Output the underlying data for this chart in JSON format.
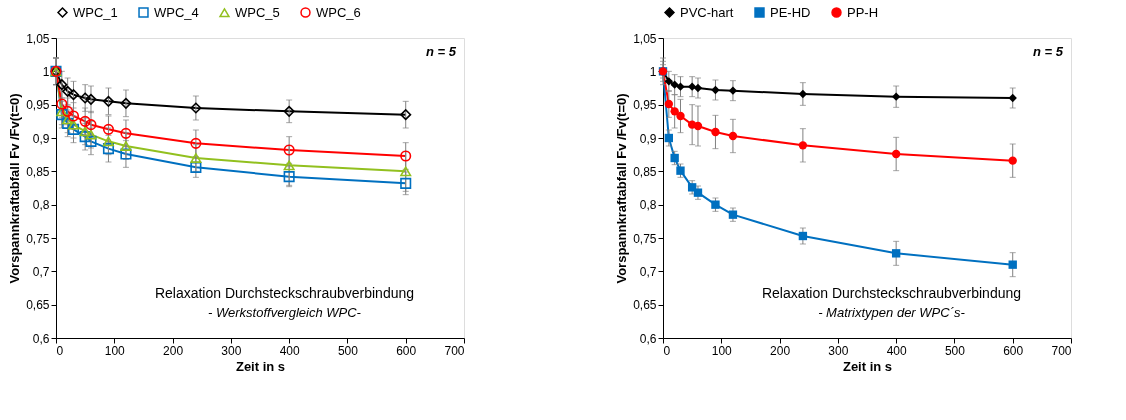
{
  "chart_data": [
    {
      "type": "line",
      "xlabel": "Zeit in s",
      "ylabel": "Vorspannkraftabfall Fv /Fv(t=0)",
      "legend": "top left",
      "grid": false,
      "line_style": "solid",
      "x": [
        0,
        10,
        20,
        30,
        50,
        60,
        90,
        120,
        240,
        400,
        600
      ],
      "xlim": [
        0,
        700
      ],
      "xticks": [
        0,
        100,
        200,
        300,
        400,
        500,
        600,
        700
      ],
      "ylim": [
        0.6,
        1.05
      ],
      "yticks": [
        {
          "value": 0.6,
          "label": "0,6"
        },
        {
          "value": 0.65,
          "label": "0,65"
        },
        {
          "value": 0.7,
          "label": "0,7"
        },
        {
          "value": 0.75,
          "label": "0,75"
        },
        {
          "value": 0.8,
          "label": "0,8"
        },
        {
          "value": 0.85,
          "label": "0,85"
        },
        {
          "value": 0.9,
          "label": "0,9"
        },
        {
          "value": 0.95,
          "label": "0,95"
        },
        {
          "value": 1,
          "label": "1"
        },
        {
          "value": 1.05,
          "label": "1,05"
        }
      ],
      "annotations": [
        "n = 5",
        "Relaxation  Durchsteckschraubverbindung",
        "- Werkstoffvergleich  WPC-"
      ],
      "series": [
        {
          "name": "WPC_1",
          "color": "#000000",
          "marker": "diamond",
          "values": [
            1,
            0.98,
            0.97,
            0.965,
            0.96,
            0.958,
            0.955,
            0.952,
            0.945,
            0.94,
            0.935
          ],
          "errors": [
            0.02,
            0.02,
            0.02,
            0.02,
            0.02,
            0.02,
            0.02,
            0.02,
            0.018,
            0.017,
            0.02
          ]
        },
        {
          "name": "WPC_4",
          "color": "#0070c0",
          "marker": "square",
          "values": [
            1,
            0.935,
            0.922,
            0.913,
            0.902,
            0.895,
            0.884,
            0.876,
            0.856,
            0.842,
            0.832
          ],
          "errors": [
            0.02,
            0.02,
            0.02,
            0.02,
            0.02,
            0.02,
            0.02,
            0.02,
            0.015,
            0.015,
            0.017
          ]
        },
        {
          "name": "WPC_5",
          "color": "#92c01f",
          "marker": "triangle",
          "values": [
            1,
            0.94,
            0.928,
            0.92,
            0.91,
            0.905,
            0.895,
            0.888,
            0.87,
            0.859,
            0.85
          ],
          "errors": [
            0.02,
            0.02,
            0.02,
            0.02,
            0.02,
            0.02,
            0.02,
            0.02,
            0.02,
            0.03,
            0.03
          ]
        },
        {
          "name": "WPC_6",
          "color": "#ff0000",
          "marker": "circle",
          "values": [
            1,
            0.951,
            0.94,
            0.933,
            0.925,
            0.92,
            0.913,
            0.907,
            0.892,
            0.882,
            0.873
          ],
          "errors": [
            0.02,
            0.02,
            0.02,
            0.02,
            0.02,
            0.02,
            0.02,
            0.02,
            0.02,
            0.02,
            0.02
          ]
        }
      ]
    },
    {
      "type": "line",
      "xlabel": "Zeit in s",
      "ylabel": "Vorspannkraftabfall Fv /Fv(t=0)",
      "legend": "top",
      "grid": false,
      "line_style": "solid",
      "x": [
        0,
        10,
        20,
        30,
        50,
        60,
        90,
        120,
        240,
        400,
        600
      ],
      "xlim": [
        0,
        700
      ],
      "xticks": [
        0,
        100,
        200,
        300,
        400,
        500,
        600,
        700
      ],
      "ylim": [
        0.6,
        1.05
      ],
      "yticks": [
        {
          "value": 0.6,
          "label": "0,6"
        },
        {
          "value": 0.65,
          "label": "0,65"
        },
        {
          "value": 0.7,
          "label": "0,7"
        },
        {
          "value": 0.75,
          "label": "0,75"
        },
        {
          "value": 0.8,
          "label": "0,8"
        },
        {
          "value": 0.85,
          "label": "0,85"
        },
        {
          "value": 0.9,
          "label": "0,9"
        },
        {
          "value": 0.95,
          "label": "0,95"
        },
        {
          "value": 1,
          "label": "1"
        },
        {
          "value": 1.05,
          "label": "1,05"
        }
      ],
      "annotations": [
        "n = 5",
        "Relaxation  Durchsteckschraubverbindung",
        "- Matrixtypen der WPC´s-"
      ],
      "series": [
        {
          "name": "PVC-hart",
          "color": "#000000",
          "marker": "diamond",
          "values": [
            1,
            0.985,
            0.98,
            0.977,
            0.977,
            0.975,
            0.972,
            0.971,
            0.966,
            0.962,
            0.96
          ],
          "errors": [
            0.015,
            0.015,
            0.015,
            0.015,
            0.015,
            0.015,
            0.015,
            0.015,
            0.017,
            0.016,
            0.015
          ]
        },
        {
          "name": "PE-HD",
          "color": "#0070c0",
          "marker": "square",
          "values": [
            1,
            0.9,
            0.87,
            0.851,
            0.826,
            0.818,
            0.8,
            0.785,
            0.753,
            0.727,
            0.71
          ],
          "errors": [
            0.01,
            0.012,
            0.01,
            0.01,
            0.01,
            0.01,
            0.01,
            0.01,
            0.012,
            0.018,
            0.018
          ]
        },
        {
          "name": "PP-H",
          "color": "#ff0000",
          "marker": "circle",
          "values": [
            1,
            0.951,
            0.94,
            0.933,
            0.92,
            0.918,
            0.909,
            0.903,
            0.889,
            0.876,
            0.866
          ],
          "errors": [
            0.02,
            0.02,
            0.025,
            0.025,
            0.03,
            0.03,
            0.025,
            0.025,
            0.025,
            0.025,
            0.025
          ]
        }
      ]
    }
  ]
}
